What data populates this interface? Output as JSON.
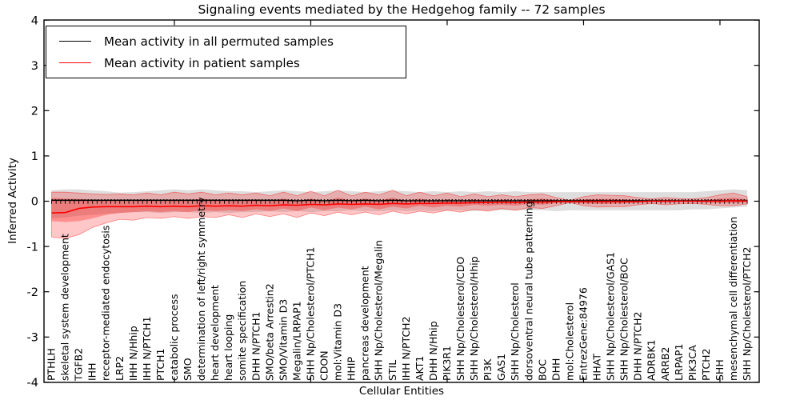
{
  "title": "Signaling events mediated by the Hedgehog family -- 72 samples",
  "xlabel": "Cellular Entities",
  "ylabel": "Inferred Activity",
  "legend": {
    "items": [
      {
        "label": "Mean activity in all permuted samples",
        "color": "#000000"
      },
      {
        "label": "Mean activity in patient samples",
        "color": "#ff0000"
      }
    ]
  },
  "chart_data": {
    "type": "line",
    "title": "Signaling events mediated by the Hedgehog family -- 72 samples",
    "xlabel": "Cellular Entities",
    "ylabel": "Inferred Activity",
    "ylim": [
      -4,
      4
    ],
    "yticks": [
      4,
      3,
      2,
      1,
      0,
      -1,
      -2,
      -3,
      -4
    ],
    "grid": false,
    "legend_position": "upper left",
    "zero_reference_line": 0,
    "categories": [
      "PTHLH",
      "skeletal system development",
      "TGFB2",
      "IHH",
      "receptor-mediated endocytosis",
      "LRP2",
      "IHH N/Hhip",
      "IHH N/PTCH1",
      "PTCH1",
      "catabolic process",
      "SMO",
      "determination of left/right symmetry",
      "heart development",
      "heart looping",
      "somite specification",
      "DHH N/PTCH1",
      "SMO/beta Arrestin2",
      "SMO/Vitamin D3",
      "Megalin/LRPAP1",
      "SHH Np/Cholesterol/PTCH1",
      "CDON",
      "mol:Vitamin D3",
      "HHIP",
      "pancreas development",
      "SHH Np/Cholesterol/Megalin",
      "STIL",
      "IHH N/PTCH2",
      "AKT1",
      "DHH N/Hhip",
      "PIK3R1",
      "SHH Np/Cholesterol/CDO",
      "SHH Np/Cholesterol/Hhip",
      "PI3K",
      "GAS1",
      "SHH Np/Cholesterol",
      "dorsoventral neural tube patterning",
      "BOC",
      "DHH",
      "mol:Cholesterol",
      "EntrezGene:84976",
      "HHAT",
      "SHH Np/Cholesterol/GAS1",
      "SHH Np/Cholesterol/BOC",
      "DHH N/PTCH2",
      "ADRBK1",
      "ARRB2",
      "LRPAP1",
      "PIK3CA",
      "PTCH2",
      "SHH",
      "mesenchymal cell differentiation",
      "SHH Np/Cholesterol/PTCH2"
    ],
    "series": [
      {
        "name": "permuted-samples-range",
        "kind": "band",
        "color": "rgba(0,0,0,0.13)",
        "upper": [
          0.24,
          0.26,
          0.26,
          0.24,
          0.22,
          0.19,
          0.2,
          0.22,
          0.24,
          0.26,
          0.24,
          0.26,
          0.24,
          0.22,
          0.22,
          0.2,
          0.22,
          0.24,
          0.22,
          0.2,
          0.22,
          0.24,
          0.22,
          0.2,
          0.22,
          0.24,
          0.22,
          0.2,
          0.22,
          0.2,
          0.22,
          0.2,
          0.22,
          0.2,
          0.22,
          0.2,
          0.2,
          0.2,
          0.2,
          0.2,
          0.2,
          0.2,
          0.2,
          0.2,
          0.2,
          0.2,
          0.2,
          0.2,
          0.22,
          0.24,
          0.26,
          0.24
        ],
        "lower": [
          -0.38,
          -0.36,
          -0.32,
          -0.3,
          -0.28,
          -0.26,
          -0.24,
          -0.24,
          -0.26,
          -0.24,
          -0.24,
          -0.26,
          -0.24,
          -0.26,
          -0.24,
          -0.24,
          -0.22,
          -0.24,
          -0.22,
          -0.24,
          -0.22,
          -0.22,
          -0.2,
          -0.22,
          -0.22,
          -0.2,
          -0.22,
          -0.2,
          -0.22,
          -0.2,
          -0.2,
          -0.22,
          -0.2,
          -0.2,
          -0.2,
          -0.2,
          -0.2,
          -0.22,
          -0.2,
          -0.2,
          -0.2,
          -0.2,
          -0.2,
          -0.2,
          -0.2,
          -0.2,
          -0.2,
          -0.18,
          -0.18,
          -0.16,
          -0.14,
          -0.12
        ]
      },
      {
        "name": "patient-samples-range-outer",
        "kind": "band",
        "color": "rgba(255,0,0,0.22)",
        "edge": "rgba(255,0,0,0.45)",
        "upper": [
          0.2,
          0.2,
          0.18,
          0.16,
          0.15,
          0.16,
          0.14,
          0.18,
          0.14,
          0.2,
          0.16,
          0.2,
          0.14,
          0.18,
          0.14,
          0.18,
          0.12,
          0.2,
          0.12,
          0.22,
          0.12,
          0.24,
          0.12,
          0.2,
          0.14,
          0.24,
          0.12,
          0.2,
          0.12,
          0.18,
          0.1,
          0.16,
          0.1,
          0.14,
          0.1,
          0.14,
          0.16,
          0.08,
          0.02,
          0.1,
          0.14,
          0.13,
          0.12,
          0.08,
          0.05,
          0.08,
          0.06,
          0.05,
          0.08,
          0.14,
          0.18,
          0.1
        ],
        "lower": [
          -0.79,
          -0.82,
          -0.74,
          -0.58,
          -0.48,
          -0.4,
          -0.42,
          -0.36,
          -0.38,
          -0.34,
          -0.38,
          -0.34,
          -0.36,
          -0.3,
          -0.36,
          -0.28,
          -0.34,
          -0.28,
          -0.36,
          -0.26,
          -0.32,
          -0.24,
          -0.3,
          -0.24,
          -0.3,
          -0.22,
          -0.28,
          -0.22,
          -0.26,
          -0.2,
          -0.24,
          -0.18,
          -0.22,
          -0.16,
          -0.2,
          -0.14,
          -0.16,
          -0.1,
          -0.03,
          -0.1,
          -0.13,
          -0.12,
          -0.12,
          -0.08,
          -0.05,
          -0.08,
          -0.06,
          -0.05,
          -0.07,
          -0.1,
          -0.1,
          -0.06
        ]
      },
      {
        "name": "patient-samples-range-inner",
        "kind": "band",
        "color": "rgba(255,0,0,0.28)",
        "upper": [
          0.07,
          0.06,
          0.05,
          0.03,
          0.01,
          0.02,
          0.0,
          0.04,
          0.02,
          0.04,
          0.02,
          0.06,
          0.02,
          0.04,
          0.0,
          0.04,
          0.0,
          0.06,
          0.0,
          0.06,
          0.0,
          0.08,
          0.02,
          0.06,
          0.02,
          0.08,
          0.0,
          0.06,
          0.0,
          0.04,
          0.0,
          0.04,
          0.0,
          0.04,
          0.0,
          0.04,
          0.06,
          0.02,
          0.01,
          0.04,
          0.05,
          0.05,
          0.04,
          0.02,
          0.02,
          0.03,
          0.02,
          0.02,
          0.03,
          0.06,
          0.08,
          0.04
        ],
        "lower": [
          -0.44,
          -0.46,
          -0.44,
          -0.38,
          -0.3,
          -0.26,
          -0.24,
          -0.22,
          -0.24,
          -0.22,
          -0.24,
          -0.2,
          -0.22,
          -0.2,
          -0.22,
          -0.18,
          -0.22,
          -0.16,
          -0.22,
          -0.14,
          -0.2,
          -0.14,
          -0.18,
          -0.12,
          -0.18,
          -0.12,
          -0.16,
          -0.1,
          -0.14,
          -0.1,
          -0.12,
          -0.08,
          -0.1,
          -0.08,
          -0.1,
          -0.06,
          -0.08,
          -0.04,
          -0.02,
          -0.05,
          -0.06,
          -0.06,
          -0.05,
          -0.03,
          -0.02,
          -0.03,
          -0.02,
          -0.02,
          -0.03,
          -0.04,
          -0.04,
          -0.02
        ]
      },
      {
        "name": "Mean activity in all permuted samples",
        "kind": "line",
        "color": "#000000",
        "values": [
          0.02,
          0.02,
          0.02,
          0.02,
          0.02,
          0.02,
          0.02,
          0.02,
          0.02,
          0.02,
          0.02,
          0.02,
          0.02,
          0.02,
          0.02,
          0.02,
          0.02,
          0.02,
          0.01,
          0.02,
          0.01,
          0.02,
          0.01,
          0.02,
          0.01,
          0.02,
          0.01,
          0.01,
          0.01,
          0.01,
          0.01,
          0.01,
          0.01,
          0.01,
          0.01,
          0.01,
          0.01,
          0.01,
          0.01,
          0.01,
          0.01,
          0.01,
          0.01,
          0.01,
          0.01,
          0.01,
          0.01,
          0.01,
          0.01,
          0.01,
          0.01,
          0.01
        ]
      },
      {
        "name": "Mean activity in patient samples",
        "kind": "line",
        "color": "#ff0000",
        "values": [
          -0.26,
          -0.25,
          -0.16,
          -0.13,
          -0.12,
          -0.12,
          -0.12,
          -0.11,
          -0.12,
          -0.11,
          -0.12,
          -0.1,
          -0.11,
          -0.1,
          -0.11,
          -0.09,
          -0.1,
          -0.08,
          -0.09,
          -0.07,
          -0.08,
          -0.06,
          -0.07,
          -0.06,
          -0.07,
          -0.05,
          -0.06,
          -0.05,
          -0.05,
          -0.04,
          -0.04,
          -0.03,
          -0.03,
          -0.02,
          -0.03,
          -0.02,
          -0.02,
          -0.01,
          -0.01,
          -0.01,
          -0.01,
          -0.01,
          -0.01,
          -0.01,
          0.0,
          0.0,
          0.0,
          0.0,
          0.0,
          0.0,
          0.01,
          0.0
        ]
      }
    ]
  }
}
